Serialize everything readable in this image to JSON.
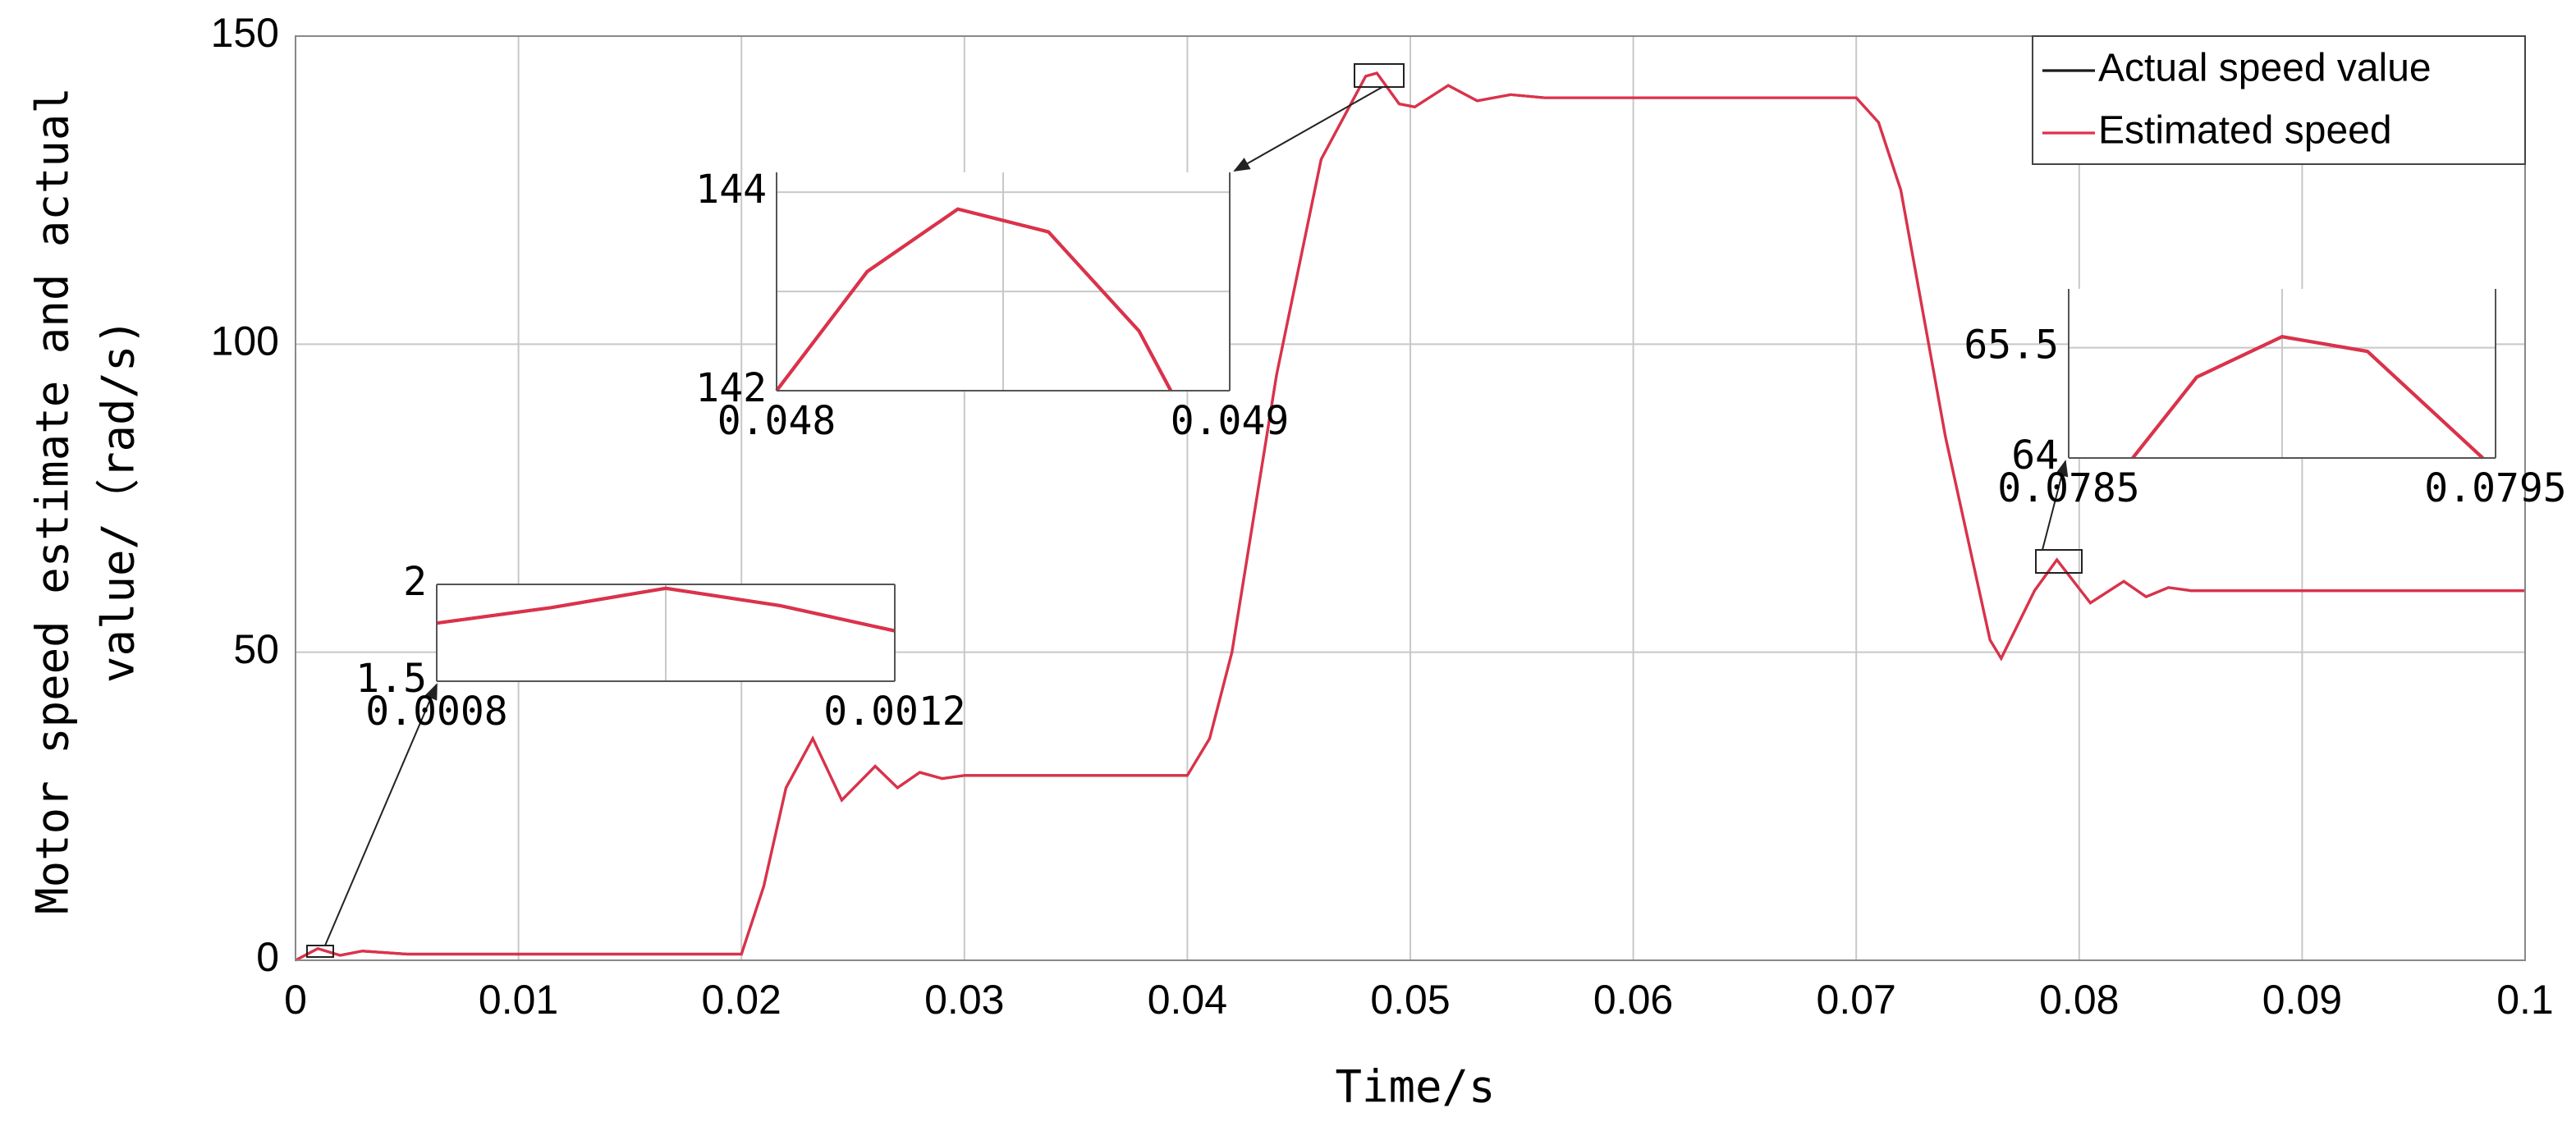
{
  "chart_data": [
    {
      "type": "line",
      "xlabel": "Time/s",
      "ylabel": [
        "Motor speed estimate and actual",
        "value/（rad/s)"
      ],
      "xlim": [
        0,
        0.1
      ],
      "ylim": [
        0,
        150
      ],
      "xticks": [
        0,
        0.01,
        0.02,
        0.03,
        0.04,
        0.05,
        0.06,
        0.07,
        0.08,
        0.09,
        0.1
      ],
      "yticks": [
        0,
        50,
        100,
        150
      ],
      "grid": true,
      "legend": "upper right",
      "x": [
        0,
        0.001,
        0.002,
        0.003,
        0.005,
        0.01,
        0.02,
        0.021,
        0.022,
        0.0232,
        0.0245,
        0.026,
        0.027,
        0.028,
        0.029,
        0.03,
        0.04,
        0.041,
        0.042,
        0.044,
        0.046,
        0.048,
        0.0485,
        0.0495,
        0.0502,
        0.0517,
        0.053,
        0.0545,
        0.056,
        0.07,
        0.071,
        0.072,
        0.074,
        0.076,
        0.0765,
        0.078,
        0.079,
        0.0805,
        0.082,
        0.083,
        0.084,
        0.085,
        0.1
      ],
      "series": [
        {
          "name": "Actual speed value",
          "color": "#1a1a1a",
          "values": [
            0,
            1.9,
            0.8,
            1.5,
            1.0,
            1.0,
            1.0,
            12,
            28,
            36,
            26,
            31.5,
            28,
            30.5,
            29.5,
            30,
            30,
            36,
            50,
            95,
            130,
            143.5,
            144,
            139,
            138.5,
            142,
            139.5,
            140.5,
            140,
            140,
            136,
            125,
            85,
            52,
            49,
            60,
            65,
            58,
            61.5,
            59,
            60.5,
            60,
            60
          ]
        },
        {
          "name": "Estimated speed",
          "color": "#e0304a",
          "values": [
            0,
            1.9,
            0.8,
            1.5,
            1.0,
            1.0,
            1.0,
            12,
            28,
            36,
            26,
            31.5,
            28,
            30.5,
            29.5,
            30,
            30,
            36,
            50,
            95,
            130,
            143.5,
            144,
            139,
            138.5,
            142,
            139.5,
            140.5,
            140,
            140,
            136,
            125,
            85,
            52,
            49,
            60,
            65,
            58,
            61.5,
            59,
            60.5,
            60,
            60
          ]
        }
      ]
    },
    {
      "type": "line",
      "xlim": [
        0.0008,
        0.0012
      ],
      "ylim": [
        1.5,
        2
      ],
      "xticks": [
        0.0008,
        0.0012
      ],
      "yticks": [
        1.5,
        2
      ],
      "xgrid": [
        0.001
      ],
      "x": [
        0.0008,
        0.0009,
        0.001,
        0.0011,
        0.0012
      ],
      "series": [
        {
          "color": "#1a1a1a",
          "values": [
            1.8,
            1.88,
            1.98,
            1.89,
            1.76
          ]
        },
        {
          "color": "#e0304a",
          "values": [
            1.8,
            1.88,
            1.98,
            1.89,
            1.76
          ]
        }
      ]
    },
    {
      "type": "line",
      "xlim": [
        0.048,
        0.049
      ],
      "ylim": [
        142,
        144.2
      ],
      "xticks": [
        0.048,
        0.049
      ],
      "yticks": [
        142,
        144
      ],
      "xgrid": [
        0.0485
      ],
      "ygrid": [
        143
      ],
      "x": [
        0.048,
        0.0482,
        0.0484,
        0.0486,
        0.0488,
        0.04887
      ],
      "series": [
        {
          "color": "#1a1a1a",
          "values": [
            142,
            143.2,
            143.83,
            143.6,
            142.6,
            142
          ]
        },
        {
          "color": "#e0304a",
          "values": [
            142,
            143.2,
            143.83,
            143.6,
            142.6,
            142
          ]
        }
      ]
    },
    {
      "type": "line",
      "xlim": [
        0.0785,
        0.0795
      ],
      "ylim": [
        64,
        66.3
      ],
      "xticks": [
        0.0785,
        0.0795
      ],
      "yticks": [
        64,
        65.5
      ],
      "xgrid": [
        0.079
      ],
      "x": [
        0.07865,
        0.0788,
        0.079,
        0.0792,
        0.07947
      ],
      "series": [
        {
          "color": "#1a1a1a",
          "values": [
            64,
            65.1,
            65.65,
            65.45,
            64
          ]
        },
        {
          "color": "#e0304a",
          "values": [
            64,
            65.1,
            65.65,
            65.45,
            64
          ]
        }
      ]
    }
  ]
}
